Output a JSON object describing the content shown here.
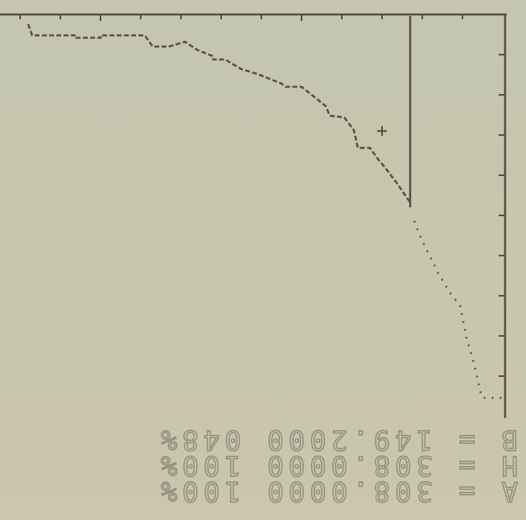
{
  "readout": {
    "lines": [
      "A = 308.0000 100%",
      "H = 308.0000 100%",
      "B = 149.2000 048%"
    ]
  }
}
